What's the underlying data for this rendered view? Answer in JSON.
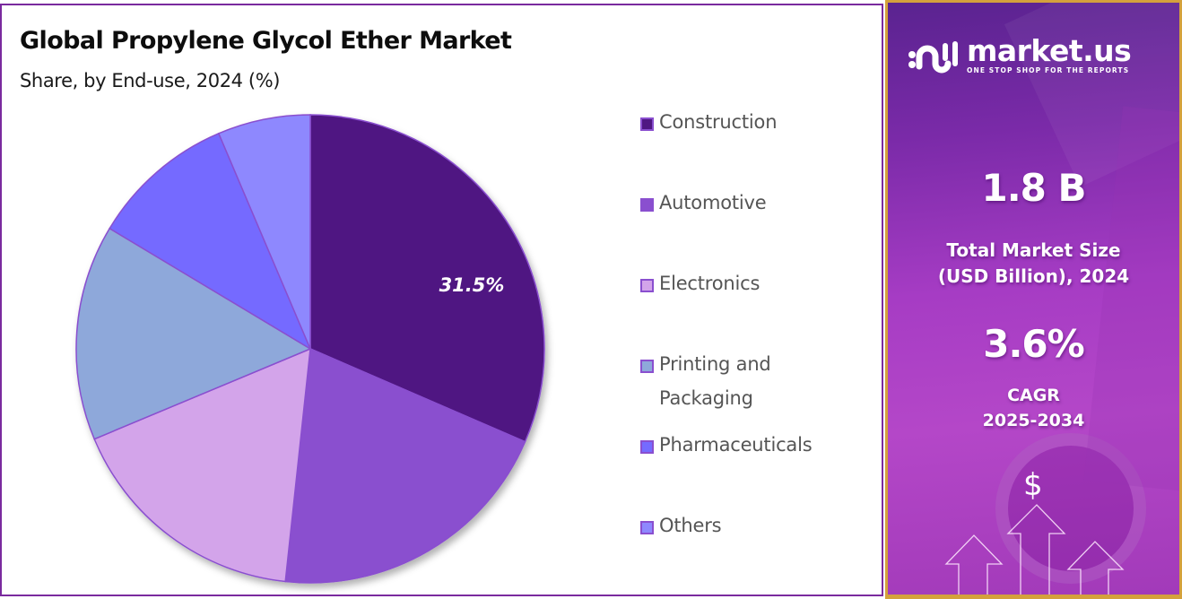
{
  "header": {
    "title": "Global Propylene  Glycol Ether Market",
    "subtitle": "Share, by End-use, 2024 (%)"
  },
  "legend": {
    "items": [
      {
        "label": "Construction",
        "color": "#4f1782"
      },
      {
        "label": "Automotive",
        "color": "#8a4fcf"
      },
      {
        "label": "Electronics",
        "color": "#d3a4ea"
      },
      {
        "label": "Printing and Packaging",
        "line1": "Printing and",
        "line2": "Packaging",
        "color": "#8ea8da"
      },
      {
        "label": "Pharmaceuticals",
        "color": "#756bff"
      },
      {
        "label": "Others",
        "color": "#8e88fe"
      }
    ]
  },
  "info_panel": {
    "brand": {
      "name": "market.us",
      "tagline": "ONE STOP SHOP FOR THE REPORTS"
    },
    "market_size": {
      "value": "1.8 B",
      "label_line1": "Total Market Size",
      "label_line2": "(USD Billion), 2024"
    },
    "cagr": {
      "value": "3.6%",
      "label_line1": "CAGR",
      "label_line2": "2025-2034"
    },
    "dollar_symbol": "$",
    "colors": {
      "border": "#d4a13c",
      "background": "#a63cc4"
    }
  },
  "chart_data": {
    "type": "pie",
    "title": "Global Propylene Glycol Ether Market",
    "subtitle": "Share, by End-use, 2024 (%)",
    "categories": [
      "Construction",
      "Automotive",
      "Electronics",
      "Printing and Packaging",
      "Pharmaceuticals",
      "Others"
    ],
    "values": [
      31.5,
      20.2,
      17.0,
      14.9,
      10.0,
      6.4
    ],
    "colors": [
      "#4f1782",
      "#8a4fcf",
      "#d3a4ea",
      "#8ea8da",
      "#756bff",
      "#8e88fe"
    ],
    "data_labels": [
      {
        "category": "Construction",
        "text": "31.5%"
      }
    ],
    "start_angle": 0,
    "direction": "clockwise",
    "legend_position": "right",
    "stroke_color": "#8a4fcf"
  }
}
